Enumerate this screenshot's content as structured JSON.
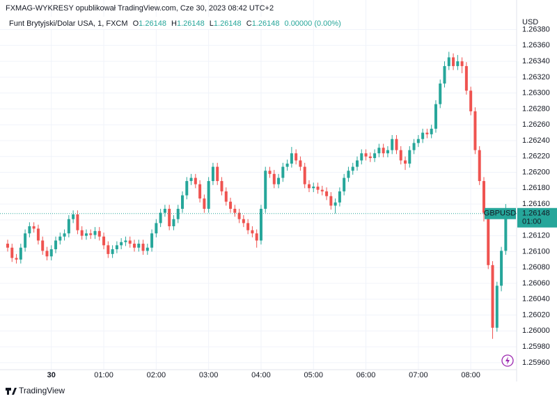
{
  "header": "FXMAG-WYKRESY opublikował TradingView.com, Cze 30, 2023 08:42 UTC+2",
  "legend": {
    "symbol": "Funt Brytyjski/Dolar USA, 1, FXCM",
    "o_label": "O",
    "o": "1.26148",
    "h_label": "H",
    "h": "1.26148",
    "l_label": "L",
    "l": "1.26148",
    "c_label": "C",
    "c": "1.26148",
    "change": "0.00000 (0.00%)"
  },
  "footer": "TradingView",
  "chart_data": {
    "type": "candlestick",
    "y_axis_title": "USD",
    "symbol_tag": "GBPUSD",
    "last_price": 1.26148,
    "countdown": "01:00",
    "up_color": "#26a69a",
    "down_color": "#ef5350",
    "grid": true,
    "ylim": [
      1.25952,
      1.26391
    ],
    "yticks": [
      {
        "value": 1.2596,
        "label": "1.25960"
      },
      {
        "value": 1.2598,
        "label": "1.25980"
      },
      {
        "value": 1.26,
        "label": "1.26000"
      },
      {
        "value": 1.2602,
        "label": "1.26020"
      },
      {
        "value": 1.2604,
        "label": "1.26040"
      },
      {
        "value": 1.2606,
        "label": "1.26060"
      },
      {
        "value": 1.2608,
        "label": "1.26080"
      },
      {
        "value": 1.261,
        "label": "1.26100"
      },
      {
        "value": 1.2612,
        "label": "1.26120"
      },
      {
        "value": 1.2614,
        "label": "1.26140"
      },
      {
        "value": 1.2616,
        "label": "1.26160"
      },
      {
        "value": 1.2618,
        "label": "1.26180"
      },
      {
        "value": 1.262,
        "label": "1.26200"
      },
      {
        "value": 1.2622,
        "label": "1.26220"
      },
      {
        "value": 1.2624,
        "label": "1.26240"
      },
      {
        "value": 1.2626,
        "label": "1.26260"
      },
      {
        "value": 1.2628,
        "label": "1.26280"
      },
      {
        "value": 1.263,
        "label": "1.26300"
      },
      {
        "value": 1.2632,
        "label": "1.26320"
      },
      {
        "value": 1.2634,
        "label": "1.26340"
      },
      {
        "value": 1.2636,
        "label": "1.26360"
      },
      {
        "value": 1.2638,
        "label": "1.26380"
      }
    ],
    "categories": [
      null,
      null,
      null,
      null,
      null,
      null,
      null,
      null,
      null,
      null,
      "30",
      null,
      null,
      null,
      null,
      null,
      null,
      null,
      null,
      null,
      null,
      null,
      "01:00",
      null,
      null,
      null,
      null,
      null,
      null,
      null,
      null,
      null,
      null,
      null,
      "02:00",
      null,
      null,
      null,
      null,
      null,
      null,
      null,
      null,
      null,
      null,
      null,
      "03:00",
      null,
      null,
      null,
      null,
      null,
      null,
      null,
      null,
      null,
      null,
      null,
      "04:00",
      null,
      null,
      null,
      null,
      null,
      null,
      null,
      null,
      null,
      null,
      null,
      "05:00",
      null,
      null,
      null,
      null,
      null,
      null,
      null,
      null,
      null,
      null,
      null,
      "06:00",
      null,
      null,
      null,
      null,
      null,
      null,
      null,
      null,
      null,
      null,
      null,
      "07:00",
      null,
      null,
      null,
      null,
      null,
      null,
      null,
      null,
      null,
      null,
      null,
      "08:00",
      null,
      null,
      null,
      null,
      null,
      null,
      null,
      null
    ],
    "open": [
      1.2611,
      1.26105,
      1.26092,
      1.2609,
      1.26105,
      1.26123,
      1.26132,
      1.26129,
      1.26114,
      1.26101,
      1.26094,
      1.26103,
      1.26114,
      1.26119,
      1.26123,
      1.26141,
      1.26147,
      1.26127,
      1.2612,
      1.26123,
      1.26121,
      1.26126,
      1.26119,
      1.26108,
      1.26097,
      1.26103,
      1.26108,
      1.26112,
      1.26114,
      1.2611,
      1.26105,
      1.2611,
      1.26101,
      1.26105,
      1.26123,
      1.26136,
      1.26149,
      1.26154,
      1.26132,
      1.26141,
      1.26154,
      1.26171,
      1.26189,
      1.26193,
      1.26185,
      1.26167,
      1.26154,
      1.26189,
      1.26207,
      1.26189,
      1.26176,
      1.26163,
      1.26154,
      1.26149,
      1.26141,
      1.26136,
      1.26127,
      1.26123,
      1.26114,
      1.26154,
      1.26202,
      1.26198,
      1.26185,
      1.26193,
      1.26207,
      1.26211,
      1.26224,
      1.26215,
      1.26207,
      1.26185,
      1.2618,
      1.26182,
      1.26178,
      1.26176,
      1.2617,
      1.26158,
      1.26162,
      1.26176,
      1.26193,
      1.26202,
      1.26207,
      1.26215,
      1.26224,
      1.2622,
      1.26218,
      1.26224,
      1.26231,
      1.26224,
      1.26228,
      1.26242,
      1.26228,
      1.26215,
      1.26211,
      1.26228,
      1.26237,
      1.26242,
      1.2625,
      1.26248,
      1.26255,
      1.26286,
      1.26312,
      1.26334,
      1.26345,
      1.26334,
      1.2634,
      1.26334,
      1.26303,
      1.26277,
      1.26228,
      1.26189,
      1.26149,
      1.26083,
      1.26004,
      1.26057,
      1.26101
    ],
    "high": [
      1.26115,
      1.2611,
      1.26097,
      1.2611,
      1.26128,
      1.26137,
      1.26137,
      1.26134,
      1.26119,
      1.26106,
      1.26108,
      1.26119,
      1.26124,
      1.26128,
      1.26146,
      1.26152,
      1.26152,
      1.26132,
      1.26128,
      1.26128,
      1.26131,
      1.26131,
      1.26124,
      1.26113,
      1.26108,
      1.26113,
      1.26117,
      1.26119,
      1.26119,
      1.26115,
      1.26115,
      1.26115,
      1.2611,
      1.26128,
      1.26141,
      1.26154,
      1.26159,
      1.26159,
      1.26146,
      1.26159,
      1.26176,
      1.26194,
      1.26198,
      1.26198,
      1.2619,
      1.26172,
      1.26194,
      1.26212,
      1.26212,
      1.26194,
      1.26181,
      1.26168,
      1.26159,
      1.26154,
      1.26146,
      1.26141,
      1.26132,
      1.26128,
      1.26159,
      1.26207,
      1.26207,
      1.26203,
      1.26198,
      1.26212,
      1.26216,
      1.26232,
      1.26229,
      1.2622,
      1.26212,
      1.2619,
      1.26187,
      1.26187,
      1.26183,
      1.26181,
      1.26175,
      1.26167,
      1.26181,
      1.26198,
      1.26207,
      1.26212,
      1.2622,
      1.26229,
      1.26229,
      1.26225,
      1.26229,
      1.26236,
      1.26236,
      1.26233,
      1.26247,
      1.26247,
      1.26233,
      1.2622,
      1.26233,
      1.26242,
      1.26247,
      1.26255,
      1.26255,
      1.2626,
      1.26291,
      1.26317,
      1.2634,
      1.26352,
      1.2635,
      1.26348,
      1.26345,
      1.26339,
      1.26308,
      1.26282,
      1.26233,
      1.26194,
      1.26154,
      1.26088,
      1.26062,
      1.26106,
      1.2616
    ],
    "low": [
      1.261,
      1.26087,
      1.26085,
      1.26085,
      1.261,
      1.26118,
      1.26124,
      1.26109,
      1.26096,
      1.26089,
      1.26089,
      1.26098,
      1.26109,
      1.26114,
      1.26118,
      1.26136,
      1.26122,
      1.26115,
      1.26115,
      1.26116,
      1.26116,
      1.26114,
      1.26103,
      1.26092,
      1.26092,
      1.26098,
      1.26103,
      1.26107,
      1.26105,
      1.261,
      1.261,
      1.26096,
      1.26096,
      1.261,
      1.26118,
      1.26131,
      1.26144,
      1.26127,
      1.26127,
      1.26136,
      1.26149,
      1.26166,
      1.26184,
      1.2618,
      1.26162,
      1.26149,
      1.26149,
      1.26184,
      1.26184,
      1.26171,
      1.26158,
      1.26149,
      1.26144,
      1.26136,
      1.26131,
      1.26122,
      1.26118,
      1.26105,
      1.26109,
      1.26149,
      1.26193,
      1.2618,
      1.2618,
      1.26188,
      1.26202,
      1.26206,
      1.2621,
      1.26202,
      1.2618,
      1.26175,
      1.26175,
      1.26173,
      1.26171,
      1.26165,
      1.26153,
      1.26148,
      1.26157,
      1.26171,
      1.26188,
      1.26197,
      1.26202,
      1.2621,
      1.26215,
      1.26213,
      1.26213,
      1.26219,
      1.26219,
      1.26219,
      1.26223,
      1.26223,
      1.2621,
      1.26203,
      1.26206,
      1.26223,
      1.26232,
      1.26237,
      1.26243,
      1.26243,
      1.2625,
      1.26281,
      1.26307,
      1.26329,
      1.26329,
      1.26329,
      1.26325,
      1.26298,
      1.26272,
      1.26223,
      1.26184,
      1.26138,
      1.26078,
      1.2599,
      1.25999,
      1.2605,
      1.26096
    ],
    "close": [
      1.26105,
      1.26092,
      1.2609,
      1.26105,
      1.26123,
      1.26132,
      1.26129,
      1.26114,
      1.26101,
      1.26094,
      1.26103,
      1.26114,
      1.26119,
      1.26123,
      1.26141,
      1.26147,
      1.26127,
      1.2612,
      1.26123,
      1.26121,
      1.26126,
      1.26119,
      1.26108,
      1.26097,
      1.26103,
      1.26108,
      1.26112,
      1.26114,
      1.2611,
      1.26105,
      1.2611,
      1.26101,
      1.26105,
      1.26123,
      1.26136,
      1.26149,
      1.26154,
      1.26132,
      1.26141,
      1.26154,
      1.26171,
      1.26189,
      1.26193,
      1.26185,
      1.26167,
      1.26154,
      1.26189,
      1.26207,
      1.26189,
      1.26176,
      1.26163,
      1.26154,
      1.26149,
      1.26141,
      1.26136,
      1.26127,
      1.26123,
      1.26114,
      1.26154,
      1.26202,
      1.26198,
      1.26185,
      1.26193,
      1.26207,
      1.26211,
      1.26224,
      1.26215,
      1.26207,
      1.26185,
      1.2618,
      1.26182,
      1.26178,
      1.26176,
      1.2617,
      1.26158,
      1.26162,
      1.26176,
      1.26193,
      1.26202,
      1.26207,
      1.26215,
      1.26224,
      1.2622,
      1.26218,
      1.26224,
      1.26231,
      1.26224,
      1.26228,
      1.26242,
      1.26228,
      1.26215,
      1.26211,
      1.26228,
      1.26237,
      1.26242,
      1.2625,
      1.26248,
      1.26255,
      1.26286,
      1.26312,
      1.26334,
      1.26345,
      1.26334,
      1.2634,
      1.26334,
      1.26303,
      1.26277,
      1.26228,
      1.26189,
      1.26149,
      1.26083,
      1.26004,
      1.26057,
      1.26101,
      1.26148
    ]
  }
}
